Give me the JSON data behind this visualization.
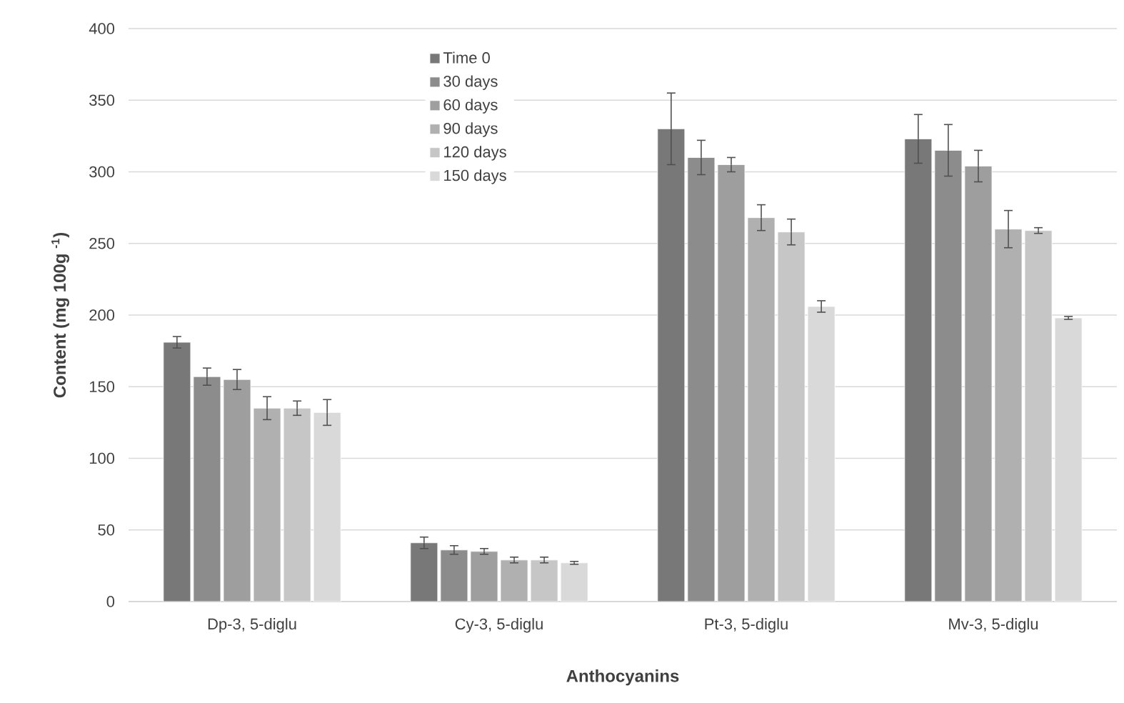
{
  "chart_data": {
    "type": "bar",
    "xlabel": "Anthocyanins",
    "ylabel": "Content (mg 100g $^{-1}$)",
    "categories": [
      "Dp-3, 5-diglu",
      "Cy-3, 5-diglu",
      "Pt-3, 5-diglu",
      "Mv-3, 5-diglu"
    ],
    "series": [
      {
        "name": "Time 0",
        "color": "#787878",
        "values": [
          181,
          41,
          330,
          323
        ],
        "errors": [
          4,
          4,
          25,
          17
        ]
      },
      {
        "name": "30 days",
        "color": "#8c8c8c",
        "values": [
          157,
          36,
          310,
          315
        ],
        "errors": [
          6,
          3,
          12,
          18
        ]
      },
      {
        "name": "60 days",
        "color": "#9e9e9e",
        "values": [
          155,
          35,
          305,
          304
        ],
        "errors": [
          7,
          2,
          5,
          11
        ]
      },
      {
        "name": "90 days",
        "color": "#b0b0b0",
        "values": [
          135,
          29,
          268,
          260
        ],
        "errors": [
          8,
          2,
          9,
          13
        ]
      },
      {
        "name": "120 days",
        "color": "#c6c6c6",
        "values": [
          135,
          29,
          258,
          259
        ],
        "errors": [
          5,
          2,
          9,
          2
        ]
      },
      {
        "name": "150 days",
        "color": "#d9d9d9",
        "values": [
          132,
          27,
          206,
          198
        ],
        "errors": [
          9,
          1,
          4,
          1
        ]
      }
    ],
    "ylim": [
      0,
      400
    ],
    "yticks": [
      0,
      50,
      100,
      150,
      200,
      250,
      300,
      350,
      400
    ],
    "grid": "y",
    "legend": "top left"
  }
}
